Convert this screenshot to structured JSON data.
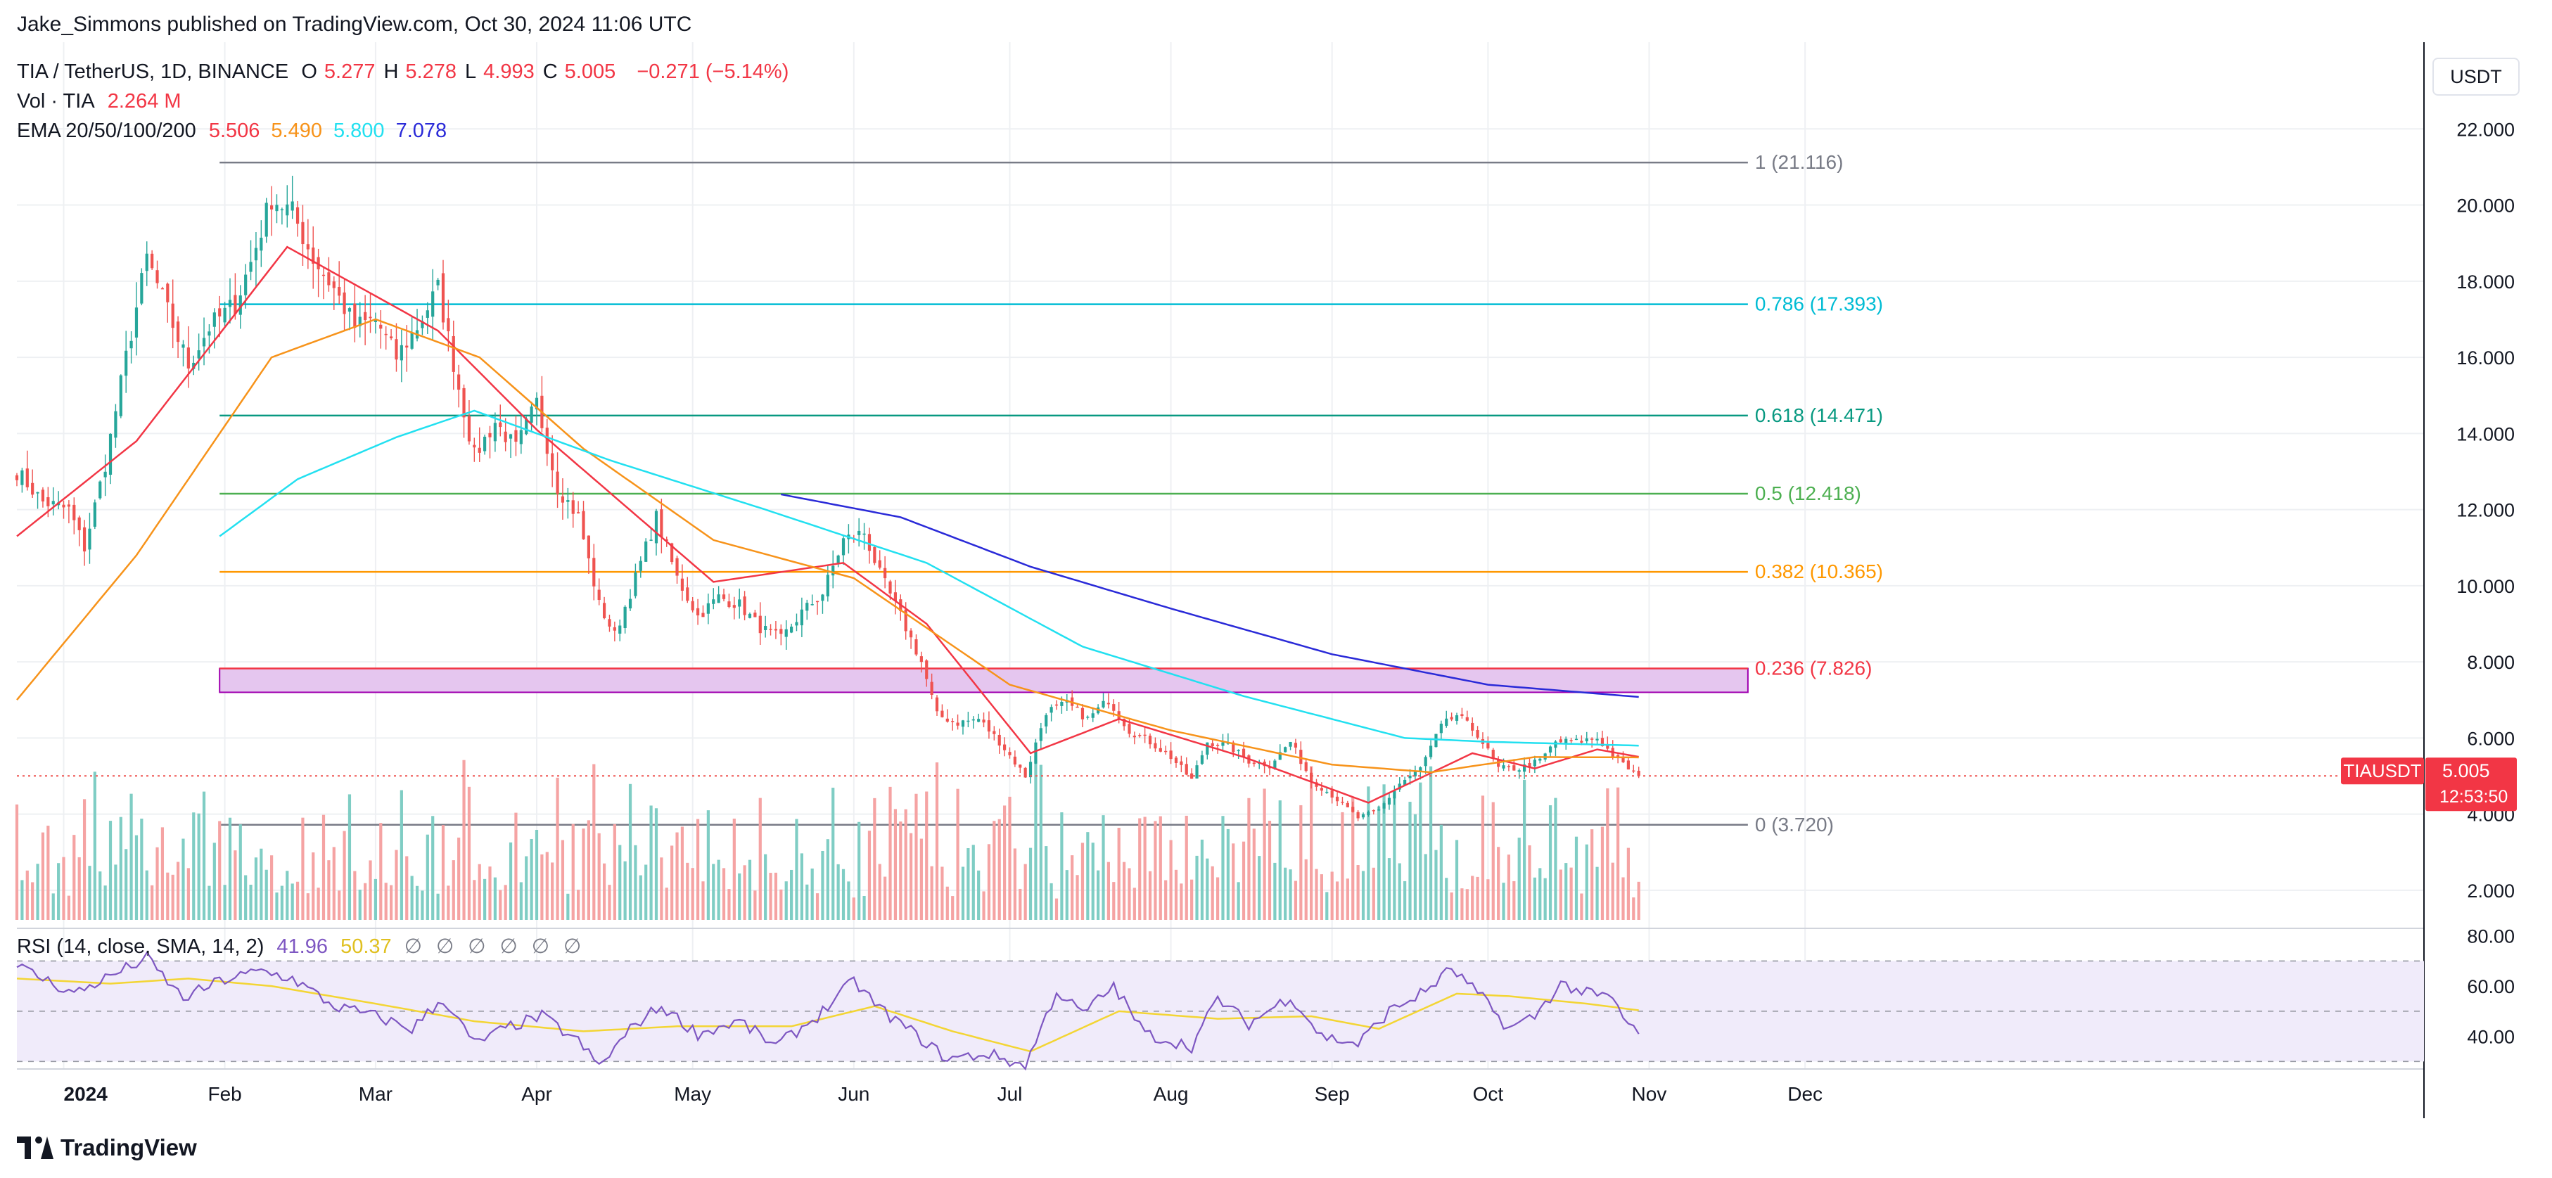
{
  "publisher_line": "Jake_Simmons published on TradingView.com, Oct 30, 2024 11:06 UTC",
  "brand": "TradingView",
  "currency_button": "USDT",
  "legend": {
    "symbol": "TIA / TetherUS, 1D, BINANCE",
    "ohlc": [
      {
        "label": "O",
        "value": "5.277"
      },
      {
        "label": "H",
        "value": "5.278"
      },
      {
        "label": "L",
        "value": "4.993"
      },
      {
        "label": "C",
        "value": "5.005"
      }
    ],
    "change": "−0.271 (−5.14%)",
    "volume_label": "Vol · TIA",
    "volume_value": "2.264 M",
    "ema_label": "EMA 20/50/100/200",
    "ema_values": [
      {
        "value": "5.506",
        "color": "#f23645"
      },
      {
        "value": "5.490",
        "color": "#f7931a"
      },
      {
        "value": "5.800",
        "color": "#22e0f0"
      },
      {
        "value": "7.078",
        "color": "#2a2ad8"
      }
    ],
    "rsi_label": "RSI (14, close, SMA, 14, 2)",
    "rsi_value": "41.96",
    "rsi_sma_value": "50.37",
    "empty_markers": [
      "∅",
      "∅",
      "∅",
      "∅",
      "∅",
      "∅"
    ]
  },
  "price_tag": {
    "symbol": "TIAUSDT",
    "price": "5.005",
    "countdown": "12:53:50"
  },
  "colors": {
    "up": "#26a69a",
    "down": "#ef5350",
    "vol_up": "#7fcdc4",
    "vol_down": "#f5a3a3",
    "grid": "#eef0f3",
    "rsi": "#7e57c2",
    "rsi_sma": "#f3d534",
    "zone_fill": "#e5c6ef",
    "zone_border": "#a000b0"
  },
  "chart_data": {
    "type": "candlestick",
    "symbol": "TIA / TetherUS",
    "interval": "1D",
    "ylim": [
      1.0,
      22.8
    ],
    "y_ticks": [
      "2.000",
      "4.000",
      "6.000",
      "8.000",
      "10.000",
      "12.000",
      "14.000",
      "16.000",
      "18.000",
      "20.000",
      "22.000"
    ],
    "x_ticks": [
      "2024",
      "Feb",
      "Mar",
      "Apr",
      "May",
      "Jun",
      "Jul",
      "Aug",
      "Sep",
      "Oct",
      "Nov",
      "Dec"
    ],
    "close_anchors": [
      [
        "2023-12-23",
        13.0
      ],
      [
        "2023-12-28",
        12.2
      ],
      [
        "2024-01-02",
        12.0
      ],
      [
        "2024-01-05",
        11.0
      ],
      [
        "2024-01-09",
        13.2
      ],
      [
        "2024-01-13",
        16.0
      ],
      [
        "2024-01-17",
        18.6
      ],
      [
        "2024-01-21",
        17.2
      ],
      [
        "2024-01-25",
        15.8
      ],
      [
        "2024-01-29",
        16.8
      ],
      [
        "2024-02-03",
        17.4
      ],
      [
        "2024-02-06",
        18.5
      ],
      [
        "2024-02-10",
        20.2
      ],
      [
        "2024-02-14",
        19.8
      ],
      [
        "2024-02-18",
        18.6
      ],
      [
        "2024-02-22",
        17.8
      ],
      [
        "2024-02-26",
        16.8
      ],
      [
        "2024-03-01",
        17.0
      ],
      [
        "2024-03-05",
        16.0
      ],
      [
        "2024-03-09",
        16.8
      ],
      [
        "2024-03-13",
        17.8
      ],
      [
        "2024-03-17",
        15.2
      ],
      [
        "2024-03-20",
        13.4
      ],
      [
        "2024-03-24",
        14.3
      ],
      [
        "2024-03-28",
        13.6
      ],
      [
        "2024-04-01",
        14.8
      ],
      [
        "2024-04-05",
        12.6
      ],
      [
        "2024-04-09",
        11.8
      ],
      [
        "2024-04-13",
        9.5
      ],
      [
        "2024-04-16",
        8.7
      ],
      [
        "2024-04-20",
        10.2
      ],
      [
        "2024-04-24",
        11.8
      ],
      [
        "2024-04-28",
        10.2
      ],
      [
        "2024-05-02",
        9.2
      ],
      [
        "2024-05-06",
        9.7
      ],
      [
        "2024-05-10",
        9.5
      ],
      [
        "2024-05-14",
        8.9
      ],
      [
        "2024-05-18",
        8.6
      ],
      [
        "2024-05-22",
        9.3
      ],
      [
        "2024-05-26",
        9.8
      ],
      [
        "2024-05-30",
        11.2
      ],
      [
        "2024-06-03",
        11.4
      ],
      [
        "2024-06-06",
        10.3
      ],
      [
        "2024-06-10",
        9.2
      ],
      [
        "2024-06-14",
        8.0
      ],
      [
        "2024-06-17",
        6.6
      ],
      [
        "2024-06-21",
        6.4
      ],
      [
        "2024-06-25",
        6.5
      ],
      [
        "2024-06-29",
        5.9
      ],
      [
        "2024-07-04",
        5.0
      ],
      [
        "2024-07-08",
        6.7
      ],
      [
        "2024-07-12",
        6.9
      ],
      [
        "2024-07-16",
        6.5
      ],
      [
        "2024-07-20",
        7.0
      ],
      [
        "2024-07-24",
        6.2
      ],
      [
        "2024-07-28",
        5.9
      ],
      [
        "2024-08-01",
        5.5
      ],
      [
        "2024-08-05",
        4.9
      ],
      [
        "2024-08-08",
        5.9
      ],
      [
        "2024-08-12",
        5.8
      ],
      [
        "2024-08-16",
        5.4
      ],
      [
        "2024-08-20",
        5.3
      ],
      [
        "2024-08-24",
        5.9
      ],
      [
        "2024-08-28",
        4.9
      ],
      [
        "2024-09-01",
        4.5
      ],
      [
        "2024-09-06",
        3.9
      ],
      [
        "2024-09-10",
        4.1
      ],
      [
        "2024-09-14",
        4.8
      ],
      [
        "2024-09-18",
        5.2
      ],
      [
        "2024-09-22",
        6.3
      ],
      [
        "2024-09-25",
        6.6
      ],
      [
        "2024-09-29",
        6.1
      ],
      [
        "2024-10-03",
        5.2
      ],
      [
        "2024-10-07",
        5.2
      ],
      [
        "2024-10-11",
        5.4
      ],
      [
        "2024-10-14",
        5.9
      ],
      [
        "2024-10-18",
        5.9
      ],
      [
        "2024-10-22",
        6.0
      ],
      [
        "2024-10-26",
        5.4
      ],
      [
        "2024-10-30",
        5.005
      ]
    ],
    "ema_series": [
      {
        "name": "EMA 20",
        "color": "#f23645",
        "start": "2023-12-23",
        "anchors": [
          [
            "2023-12-23",
            11.3
          ],
          [
            "2024-01-15",
            13.8
          ],
          [
            "2024-02-13",
            18.9
          ],
          [
            "2024-03-13",
            16.7
          ],
          [
            "2024-04-01",
            14.1
          ],
          [
            "2024-05-05",
            10.1
          ],
          [
            "2024-05-30",
            10.6
          ],
          [
            "2024-06-15",
            9.0
          ],
          [
            "2024-07-05",
            5.6
          ],
          [
            "2024-07-22",
            6.5
          ],
          [
            "2024-08-15",
            5.5
          ],
          [
            "2024-09-08",
            4.3
          ],
          [
            "2024-09-28",
            5.6
          ],
          [
            "2024-10-10",
            5.2
          ],
          [
            "2024-10-22",
            5.7
          ],
          [
            "2024-10-30",
            5.506
          ]
        ]
      },
      {
        "name": "EMA 50",
        "color": "#f7931a",
        "start": "2023-12-23",
        "anchors": [
          [
            "2023-12-23",
            7.0
          ],
          [
            "2024-01-15",
            10.8
          ],
          [
            "2024-02-10",
            16.0
          ],
          [
            "2024-03-01",
            17.0
          ],
          [
            "2024-03-21",
            16.0
          ],
          [
            "2024-04-10",
            13.6
          ],
          [
            "2024-05-05",
            11.2
          ],
          [
            "2024-06-01",
            10.2
          ],
          [
            "2024-07-01",
            7.4
          ],
          [
            "2024-08-01",
            6.2
          ],
          [
            "2024-09-01",
            5.3
          ],
          [
            "2024-09-20",
            5.1
          ],
          [
            "2024-10-10",
            5.5
          ],
          [
            "2024-10-30",
            5.49
          ]
        ]
      },
      {
        "name": "EMA 100",
        "color": "#22e0f0",
        "start": "2024-01-31",
        "anchors": [
          [
            "2024-01-31",
            11.3
          ],
          [
            "2024-02-15",
            12.8
          ],
          [
            "2024-03-05",
            13.9
          ],
          [
            "2024-03-20",
            14.6
          ],
          [
            "2024-04-15",
            13.3
          ],
          [
            "2024-05-15",
            12.0
          ],
          [
            "2024-06-15",
            10.6
          ],
          [
            "2024-07-15",
            8.4
          ],
          [
            "2024-08-15",
            7.1
          ],
          [
            "2024-09-15",
            6.0
          ],
          [
            "2024-10-01",
            5.9
          ],
          [
            "2024-10-30",
            5.8
          ]
        ]
      },
      {
        "name": "EMA 200",
        "color": "#2a2ad8",
        "start": "2024-05-18",
        "anchors": [
          [
            "2024-05-18",
            12.4
          ],
          [
            "2024-06-10",
            11.8
          ],
          [
            "2024-07-05",
            10.5
          ],
          [
            "2024-08-01",
            9.4
          ],
          [
            "2024-09-01",
            8.2
          ],
          [
            "2024-10-01",
            7.4
          ],
          [
            "2024-10-30",
            7.078
          ]
        ]
      }
    ],
    "fib_levels": [
      {
        "label": "1 (21.116)",
        "value": 21.116,
        "color": "#787b86"
      },
      {
        "label": "0.786 (17.393)",
        "value": 17.393,
        "color": "#00bcd4"
      },
      {
        "label": "0.618 (14.471)",
        "value": 14.471,
        "color": "#089981"
      },
      {
        "label": "0.5 (12.418)",
        "value": 12.418,
        "color": "#4caf50"
      },
      {
        "label": "0.382 (10.365)",
        "value": 10.365,
        "color": "#ff9800"
      },
      {
        "label": "0.236 (7.826)",
        "value": 7.826,
        "color": "#f23645"
      },
      {
        "label": "0 (3.720)",
        "value": 3.72,
        "color": "#787b86"
      }
    ],
    "fib_start": "2024-01-31",
    "fib_end": "2024-11-20",
    "support_zone": {
      "from": "2024-01-31",
      "to": "2024-11-20",
      "low": 7.2,
      "high": 7.826
    },
    "last_price": 5.005,
    "rsi": {
      "ylim": [
        27,
        83
      ],
      "y_ticks": [
        "40.00",
        "60.00",
        "80.00"
      ],
      "bands": [
        30,
        50,
        70
      ],
      "anchors": [
        [
          "2023-12-23",
          68
        ],
        [
          "2024-01-03",
          57
        ],
        [
          "2024-01-10",
          64
        ],
        [
          "2024-01-17",
          71
        ],
        [
          "2024-01-24",
          55
        ],
        [
          "2024-01-31",
          62
        ],
        [
          "2024-02-08",
          66
        ],
        [
          "2024-02-14",
          63
        ],
        [
          "2024-02-22",
          52
        ],
        [
          "2024-03-01",
          48
        ],
        [
          "2024-03-08",
          43
        ],
        [
          "2024-03-14",
          55
        ],
        [
          "2024-03-20",
          37
        ],
        [
          "2024-03-27",
          44
        ],
        [
          "2024-04-02",
          48
        ],
        [
          "2024-04-09",
          38
        ],
        [
          "2024-04-13",
          28
        ],
        [
          "2024-04-20",
          45
        ],
        [
          "2024-04-25",
          52
        ],
        [
          "2024-05-02",
          41
        ],
        [
          "2024-05-10",
          46
        ],
        [
          "2024-05-17",
          36
        ],
        [
          "2024-05-25",
          48
        ],
        [
          "2024-06-01",
          62
        ],
        [
          "2024-06-06",
          51
        ],
        [
          "2024-06-12",
          42
        ],
        [
          "2024-06-19",
          31
        ],
        [
          "2024-06-27",
          33
        ],
        [
          "2024-07-04",
          28
        ],
        [
          "2024-07-10",
          58
        ],
        [
          "2024-07-15",
          49
        ],
        [
          "2024-07-21",
          60
        ],
        [
          "2024-07-27",
          41
        ],
        [
          "2024-08-05",
          36
        ],
        [
          "2024-08-10",
          55
        ],
        [
          "2024-08-16",
          45
        ],
        [
          "2024-08-24",
          56
        ],
        [
          "2024-08-30",
          40
        ],
        [
          "2024-09-06",
          37
        ],
        [
          "2024-09-12",
          50
        ],
        [
          "2024-09-19",
          58
        ],
        [
          "2024-09-24",
          67
        ],
        [
          "2024-09-30",
          55
        ],
        [
          "2024-10-05",
          43
        ],
        [
          "2024-10-10",
          48
        ],
        [
          "2024-10-15",
          61
        ],
        [
          "2024-10-20",
          57
        ],
        [
          "2024-10-25",
          55
        ],
        [
          "2024-10-28",
          44
        ],
        [
          "2024-10-30",
          41.96
        ]
      ],
      "sma_anchors": [
        [
          "2023-12-23",
          63
        ],
        [
          "2024-01-10",
          61
        ],
        [
          "2024-01-25",
          63
        ],
        [
          "2024-02-10",
          60
        ],
        [
          "2024-03-01",
          53
        ],
        [
          "2024-03-20",
          46
        ],
        [
          "2024-04-10",
          42
        ],
        [
          "2024-04-28",
          44
        ],
        [
          "2024-05-20",
          44
        ],
        [
          "2024-06-05",
          52
        ],
        [
          "2024-06-20",
          42
        ],
        [
          "2024-07-05",
          34
        ],
        [
          "2024-07-22",
          50
        ],
        [
          "2024-08-10",
          47
        ],
        [
          "2024-08-28",
          48
        ],
        [
          "2024-09-10",
          43
        ],
        [
          "2024-09-25",
          57
        ],
        [
          "2024-10-05",
          56
        ],
        [
          "2024-10-20",
          53
        ],
        [
          "2024-10-30",
          50.37
        ]
      ]
    }
  }
}
